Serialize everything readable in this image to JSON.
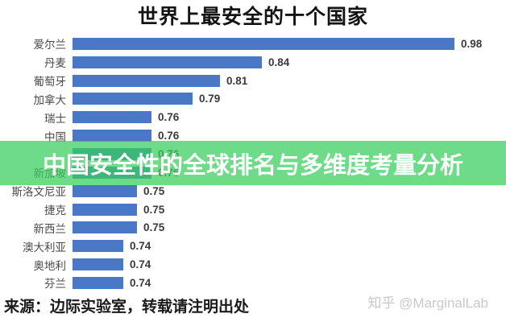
{
  "title": "世界上最安全的十个国家",
  "overlay_banner": {
    "text": "中国安全性的全球排名与多维度考量分析",
    "background_color": "rgba(56,205,93,0.73)",
    "text_color": "#ffffff"
  },
  "chart_data": {
    "type": "bar",
    "orientation": "horizontal",
    "title": "世界上最安全的十个国家",
    "bar_color": "#4a77c6",
    "value_labels": "outside-end",
    "grid": false,
    "legend": false,
    "xlim": [
      0.7,
      1.0
    ],
    "rows": [
      {
        "label": "爱尔兰",
        "value": 0.98,
        "display": "0.98"
      },
      {
        "label": "丹麦",
        "value": 0.84,
        "display": "0.84"
      },
      {
        "label": "葡萄牙",
        "value": 0.81,
        "display": "0.81"
      },
      {
        "label": "加拿大",
        "value": 0.79,
        "display": "0.79"
      },
      {
        "label": "瑞士",
        "value": 0.76,
        "display": "0.76"
      },
      {
        "label": "中国",
        "value": 0.76,
        "display": "0.76"
      },
      {
        "label": "",
        "value": 0.76,
        "display": "0.76",
        "obscured_by_banner": true
      },
      {
        "label": "新加坡",
        "value": 0.76,
        "display": "0.76"
      },
      {
        "label": "斯洛文尼亚",
        "value": 0.75,
        "display": "0.75"
      },
      {
        "label": "捷克",
        "value": 0.75,
        "display": "0.75"
      },
      {
        "label": "新西兰",
        "value": 0.75,
        "display": "0.75"
      },
      {
        "label": "澳大利亚",
        "value": 0.74,
        "display": "0.74"
      },
      {
        "label": "奥地利",
        "value": 0.74,
        "display": "0.74"
      },
      {
        "label": "芬兰",
        "value": 0.74,
        "display": "0.74"
      }
    ]
  },
  "footer": {
    "source_text": "来源：边际实验室，转载请注明出处"
  },
  "watermark": {
    "text": "知乎 @MarginalLab",
    "color": "#c9c9c9"
  }
}
